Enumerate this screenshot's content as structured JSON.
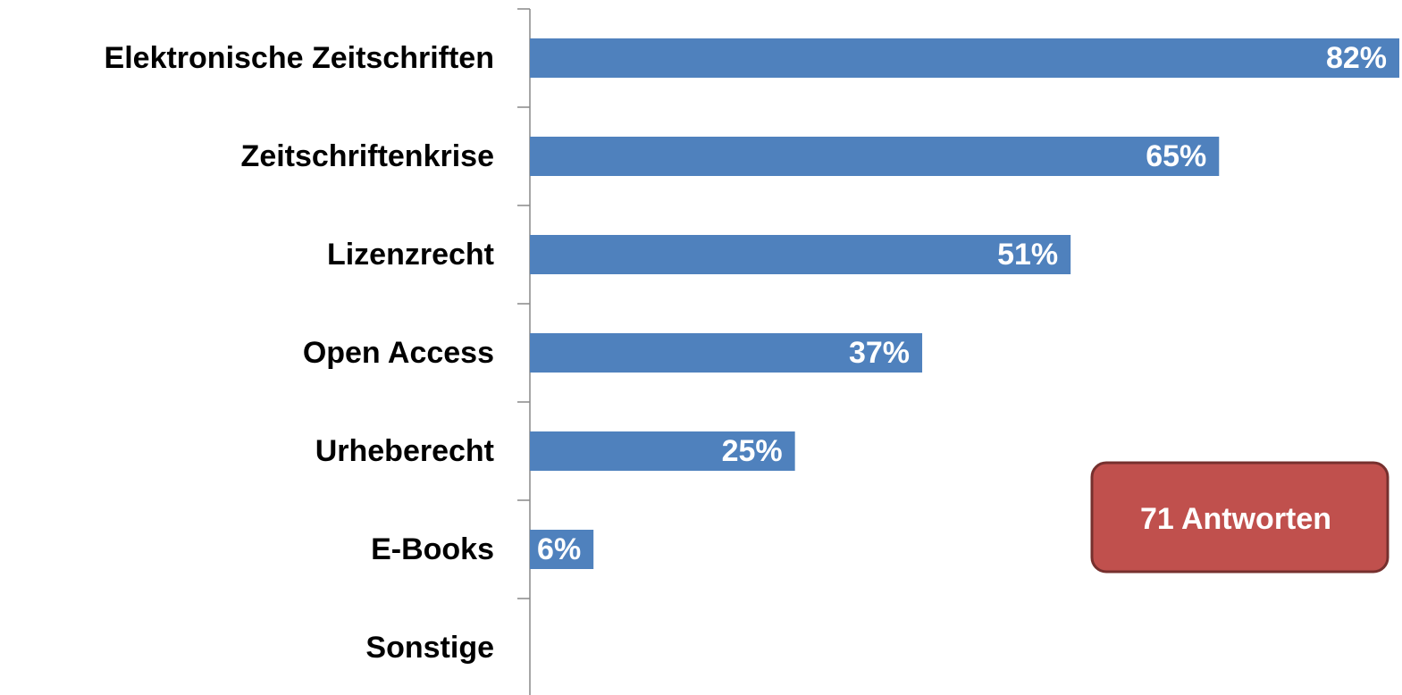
{
  "chart_data": {
    "type": "bar",
    "orientation": "horizontal",
    "categories": [
      "Elektronische Zeitschriften",
      "Zeitschriftenkrise",
      "Lizenzrecht",
      "Open Access",
      "Urheberecht",
      "E-Books",
      "Sonstige"
    ],
    "values": [
      82,
      65,
      51,
      37,
      25,
      6,
      0
    ],
    "value_labels": [
      "82%",
      "65%",
      "51%",
      "37%",
      "25%",
      "6%",
      null
    ],
    "color": "#4f81bd",
    "annotation": "71 Antworten",
    "annotation_color": "#c0504d"
  }
}
